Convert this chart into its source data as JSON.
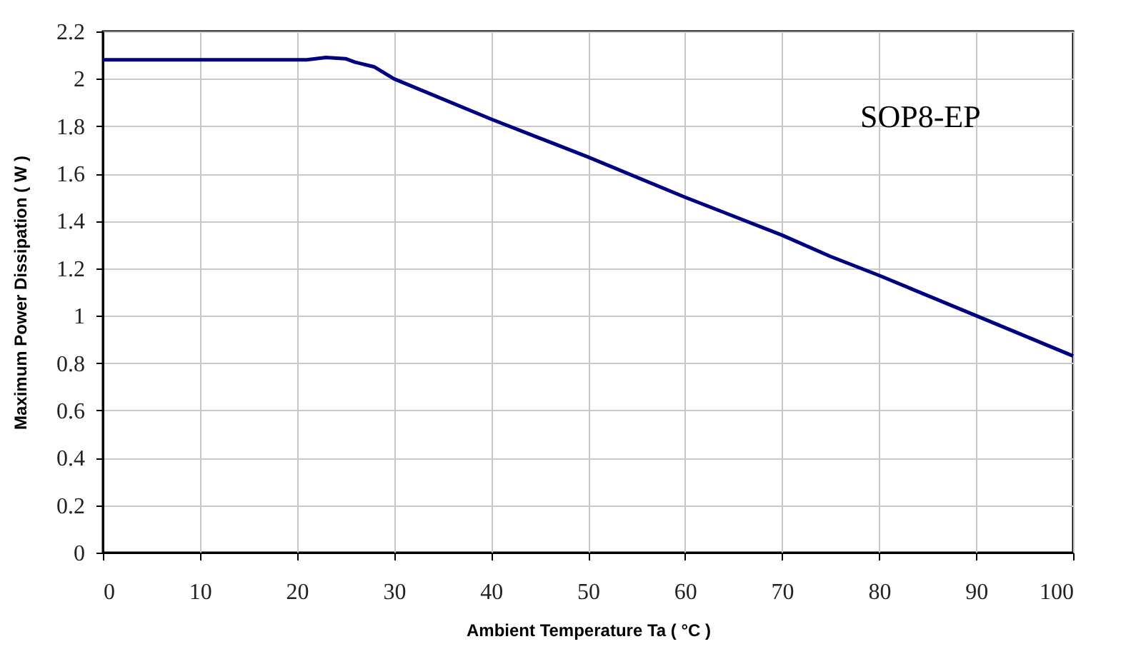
{
  "chart_data": {
    "type": "line",
    "xlabel": "Ambient Temperature  Ta ( °C )",
    "ylabel": "Maximum Power Dissipation ( W )",
    "annotations": [
      "SOP8-EP"
    ],
    "x": [
      0,
      10,
      21,
      23,
      25,
      26,
      28,
      30,
      40,
      45,
      50,
      60,
      70,
      75,
      80,
      90,
      100
    ],
    "series": [
      {
        "color": "#000080",
        "values": [
          2.08,
          2.08,
          2.08,
          2.09,
          2.085,
          2.07,
          2.05,
          2.0,
          1.83,
          1.75,
          1.67,
          1.5,
          1.34,
          1.25,
          1.17,
          1.0,
          0.83
        ]
      }
    ],
    "xlim": [
      0,
      100
    ],
    "xticks": [
      0,
      10,
      20,
      30,
      40,
      50,
      60,
      70,
      80,
      90,
      100
    ],
    "ylim": [
      0,
      2.2
    ],
    "yticks": [
      0,
      0.2,
      0.4,
      0.6,
      0.8,
      1,
      1.2,
      1.4,
      1.6,
      1.8,
      2,
      2.2
    ],
    "grid": true,
    "marker": "none",
    "line_style": "solid"
  }
}
